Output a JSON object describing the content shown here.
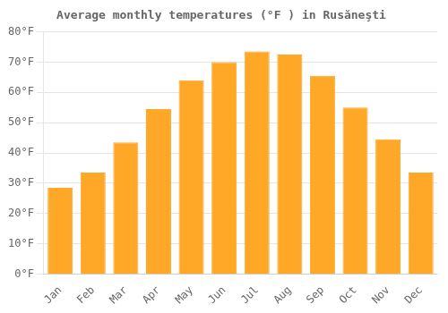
{
  "chart_data": {
    "type": "bar",
    "title": "Average monthly temperatures (°F ) in Rusăneşti",
    "categories": [
      "Jan",
      "Feb",
      "Mar",
      "Apr",
      "May",
      "Jun",
      "Jul",
      "Aug",
      "Sep",
      "Oct",
      "Nov",
      "Dec"
    ],
    "values": [
      28.5,
      33.5,
      43.5,
      54.5,
      64.0,
      70.0,
      73.5,
      72.5,
      65.5,
      55.0,
      44.5,
      33.5
    ],
    "color": "#FFA726",
    "ylim": [
      0,
      80
    ],
    "yticks": [
      {
        "value": 0,
        "label": "0°F"
      },
      {
        "value": 10,
        "label": "10°F"
      },
      {
        "value": 20,
        "label": "20°F"
      },
      {
        "value": 30,
        "label": "30°F"
      },
      {
        "value": 40,
        "label": "40°F"
      },
      {
        "value": 50,
        "label": "50°F"
      },
      {
        "value": 60,
        "label": "60°F"
      },
      {
        "value": 70,
        "label": "70°F"
      },
      {
        "value": 80,
        "label": "80°F"
      }
    ],
    "grid": true
  }
}
